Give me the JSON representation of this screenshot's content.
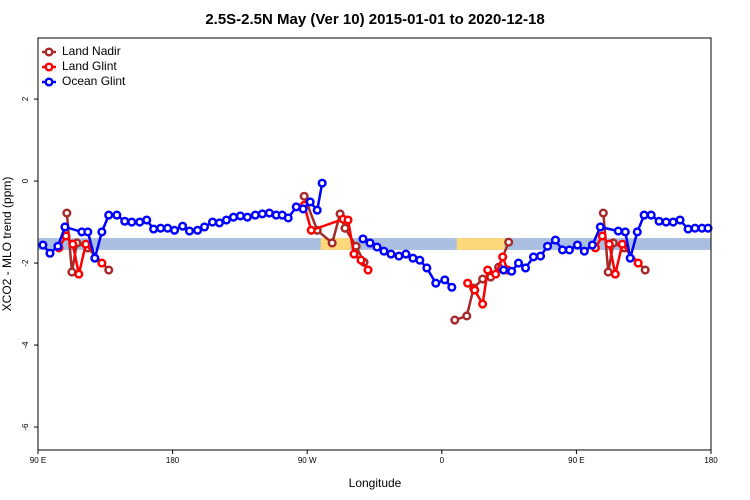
{
  "chart_data": {
    "type": "line",
    "title": "2.5S-2.5N May (Ver 10)   2015-01-01 to 2020-12-18",
    "x_label": "Longitude",
    "y_label": "XCO2 - MLO trend (ppm)",
    "xlim": [
      90,
      540
    ],
    "ylim": [
      -6.56,
      3.49
    ],
    "xticks": [
      {
        "value": 90,
        "label": "90 E"
      },
      180,
      {
        "value": 270,
        "label": "90 W"
      },
      {
        "value": 360,
        "label": "0"
      },
      {
        "value": 450,
        "label": "90 E"
      },
      {
        "value": 540,
        "label": "180"
      }
    ],
    "yticks": [
      -6,
      -4,
      -2,
      0,
      2
    ],
    "legend": "top-left",
    "bands": [
      {
        "color": "#a9bee0",
        "x": [
          90,
          540
        ],
        "y": [
          -1.68,
          -1.39
        ]
      },
      {
        "color": "#fdd87a",
        "x": [
          279,
          299
        ],
        "y": [
          -1.68,
          -1.39
        ]
      },
      {
        "color": "#fdd87a",
        "x": [
          370,
          402
        ],
        "y": [
          -1.68,
          -1.39
        ]
      }
    ],
    "series": [
      {
        "name": "Land Nadir",
        "color": "#a52a2a",
        "x": [
          109.3,
          112.7,
          116,
          123.3,
          137.3,
          null,
          268,
          276.7,
          286.7,
          292,
          295.3,
          302.7,
          308,
          null,
          368.7,
          376.7,
          381.3,
          387.3,
          392.7,
          398,
          404.7,
          null,
          468,
          471.3,
          474.7,
          482,
          496
        ],
        "values": [
          -0.78,
          -2.22,
          -1.51,
          -1.63,
          -2.17,
          null,
          -0.37,
          -1.2,
          -1.51,
          -0.8,
          -1.15,
          -1.59,
          -1.98,
          null,
          -3.39,
          -3.29,
          -2.61,
          -2.39,
          -2.34,
          -2.1,
          -1.49,
          null,
          -0.78,
          -2.22,
          -1.51,
          -1.63,
          -2.17
        ]
      },
      {
        "name": "Land Glint",
        "color": "#ff0000",
        "x": [
          104,
          108.7,
          113.3,
          117.3,
          122,
          132.7,
          null,
          268,
          272.7,
          294,
          297.3,
          301.3,
          306,
          310.7,
          null,
          377.3,
          382,
          387.3,
          390.7,
          396,
          400.7,
          404,
          null,
          462.7,
          467.3,
          472,
          476,
          480.7,
          491.3
        ],
        "values": [
          -1.63,
          -1.34,
          -1.54,
          -2.27,
          -1.54,
          -2.0,
          null,
          -0.59,
          -1.2,
          -0.93,
          -0.95,
          -1.78,
          -1.93,
          -2.17,
          null,
          -2.49,
          -2.66,
          -3.0,
          -2.17,
          -2.27,
          -1.85,
          -2.17,
          null,
          -1.63,
          -1.34,
          -1.54,
          -2.27,
          -1.54,
          -2.0
        ]
      },
      {
        "name": "Ocean Glint",
        "color": "#0000ff",
        "x": [
          93.3,
          98,
          103.3,
          108,
          119.3,
          123.3,
          128,
          132.7,
          137.3,
          142.7,
          148,
          152.7,
          158,
          162.7,
          167.3,
          172,
          176.7,
          181.3,
          186.7,
          191.3,
          196.7,
          201.3,
          206.7,
          211.3,
          216,
          220.7,
          225.3,
          230,
          235.3,
          240,
          244.7,
          249.3,
          253.3,
          257.3,
          262.7,
          267.3,
          272,
          276.7,
          280,
          null,
          307.3,
          312,
          316.7,
          321.3,
          326,
          331.3,
          336,
          340.7,
          345.3,
          350,
          356,
          362,
          366.7,
          null,
          401.3,
          406.7,
          411.3,
          416,
          421.3,
          426,
          430.7,
          436,
          440.7,
          445.3,
          450.7,
          455.3,
          460.7,
          466,
          478,
          482.7,
          486,
          490.7,
          495.3,
          500,
          505.3,
          510,
          514.7,
          519.3,
          524.7,
          529.3,
          534,
          538
        ],
        "values": [
          -1.56,
          -1.76,
          -1.59,
          -1.12,
          -1.24,
          -1.24,
          -1.88,
          -1.24,
          -0.83,
          -0.83,
          -0.98,
          -1.0,
          -1.0,
          -0.95,
          -1.17,
          -1.15,
          -1.15,
          -1.2,
          -1.1,
          -1.22,
          -1.2,
          -1.12,
          -1.0,
          -1.02,
          -0.95,
          -0.88,
          -0.85,
          -0.88,
          -0.83,
          -0.8,
          -0.78,
          -0.83,
          -0.83,
          -0.9,
          -0.63,
          -0.68,
          -0.51,
          -0.71,
          -0.05,
          null,
          -1.41,
          -1.51,
          -1.61,
          -1.71,
          -1.78,
          -1.83,
          -1.78,
          -1.88,
          -1.93,
          -2.12,
          -2.49,
          -2.41,
          -2.59,
          null,
          -2.17,
          -2.2,
          -2.0,
          -2.12,
          -1.85,
          -1.83,
          -1.59,
          -1.44,
          -1.68,
          -1.68,
          -1.56,
          -1.71,
          -1.56,
          -1.12,
          -1.22,
          -1.24,
          -1.88,
          -1.24,
          -0.83,
          -0.83,
          -0.98,
          -1.0,
          -1.0,
          -0.95,
          -1.17,
          -1.15,
          -1.15,
          -1.15
        ]
      }
    ]
  }
}
